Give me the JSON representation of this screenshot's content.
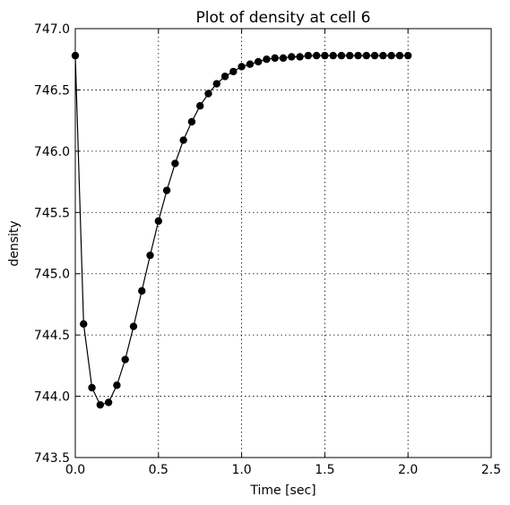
{
  "chart_data": {
    "type": "line",
    "title": "Plot of density at cell 6",
    "xlabel": "Time [sec]",
    "ylabel": "density",
    "xlim": [
      0.0,
      2.5
    ],
    "ylim": [
      743.5,
      747.0
    ],
    "xticks": [
      "0.0",
      "0.5",
      "1.0",
      "1.5",
      "2.0",
      "2.5"
    ],
    "yticks": [
      "743.5",
      "744.0",
      "744.5",
      "745.0",
      "745.5",
      "746.0",
      "746.5",
      "747.0"
    ],
    "grid": true,
    "series": [
      {
        "color": "#000000",
        "marker": "circle",
        "x": [
          0.0,
          0.05,
          0.1,
          0.15,
          0.2,
          0.25,
          0.3,
          0.35,
          0.4,
          0.45,
          0.5,
          0.55,
          0.6,
          0.65,
          0.7,
          0.75,
          0.8,
          0.85,
          0.9,
          0.95,
          1.0,
          1.05,
          1.1,
          1.15,
          1.2,
          1.25,
          1.3,
          1.35,
          1.4,
          1.45,
          1.5,
          1.55,
          1.6,
          1.65,
          1.7,
          1.75,
          1.8,
          1.85,
          1.9,
          1.95,
          2.0
        ],
        "y": [
          746.78,
          744.59,
          744.07,
          743.93,
          743.95,
          744.09,
          744.3,
          744.57,
          744.86,
          745.15,
          745.43,
          745.68,
          745.9,
          746.09,
          746.24,
          746.37,
          746.47,
          746.55,
          746.61,
          746.65,
          746.69,
          746.71,
          746.73,
          746.75,
          746.76,
          746.76,
          746.77,
          746.77,
          746.78,
          746.78,
          746.78,
          746.78,
          746.78,
          746.78,
          746.78,
          746.78,
          746.78,
          746.78,
          746.78,
          746.78,
          746.78
        ]
      }
    ]
  }
}
